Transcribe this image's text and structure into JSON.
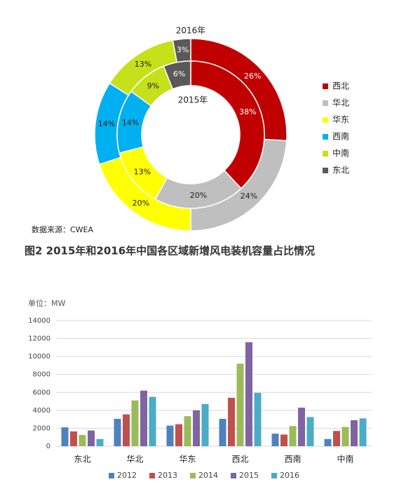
{
  "chart_data": [
    {
      "type": "donut",
      "title": "图2 2015年和2016年中国各区域新增风电装机容量占比情况",
      "source": "数据来源：CWEA",
      "categories": [
        "西北",
        "华北",
        "华东",
        "西南",
        "中南",
        "东北"
      ],
      "colors": [
        "#c00000",
        "#bfbfbf",
        "#ffff00",
        "#00b0f0",
        "#c6e01a",
        "#595959"
      ],
      "series": [
        {
          "name": "2016年",
          "values": [
            26,
            24,
            20,
            14,
            13,
            3
          ],
          "value_labels": [
            "26%",
            "24%",
            "20%",
            "14%",
            "13%",
            "3%"
          ]
        },
        {
          "name": "2015年",
          "values": [
            38,
            20,
            13,
            14,
            9,
            6
          ],
          "value_labels": [
            "38%",
            "20%",
            "13%",
            "14%",
            "9%",
            "6%"
          ]
        }
      ],
      "legend": "right"
    },
    {
      "type": "bar",
      "unit_label": "单位：MW",
      "categories": [
        "东北",
        "华北",
        "华东",
        "西北",
        "西南",
        "中南"
      ],
      "series": [
        {
          "name": "2012",
          "color": "#4f81bd",
          "values": [
            2100,
            3050,
            2300,
            3050,
            1400,
            800
          ]
        },
        {
          "name": "2013",
          "color": "#c0504d",
          "values": [
            1650,
            3550,
            2450,
            5400,
            1300,
            1700
          ]
        },
        {
          "name": "2014",
          "color": "#9bbb59",
          "values": [
            1250,
            5100,
            3350,
            9200,
            2250,
            2150
          ]
        },
        {
          "name": "2015",
          "color": "#8064a2",
          "values": [
            1750,
            6200,
            4000,
            11600,
            4300,
            2900
          ]
        },
        {
          "name": "2016",
          "color": "#4bacc6",
          "values": [
            800,
            5500,
            4700,
            5950,
            3250,
            3100
          ]
        }
      ],
      "ylim": [
        0,
        14000
      ],
      "yticks": [
        0,
        2000,
        4000,
        6000,
        8000,
        10000,
        12000,
        14000
      ],
      "grid": true,
      "legend": "bottom"
    }
  ]
}
